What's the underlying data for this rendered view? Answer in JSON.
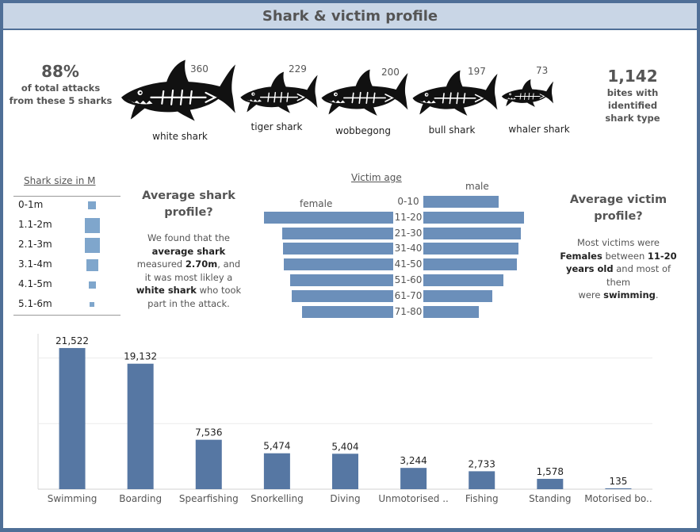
{
  "header": {
    "title": "Shark & victim profile"
  },
  "kpis": {
    "left_value": "88%",
    "left_line1": "of total attacks",
    "left_line2": "from these 5 sharks",
    "right_value": "1,142",
    "right_line1": "bites with identified",
    "right_line2": "shark type"
  },
  "sharks": [
    {
      "name": "white shark",
      "count": "360"
    },
    {
      "name": "tiger shark",
      "count": "229"
    },
    {
      "name": "wobbegong",
      "count": "200"
    },
    {
      "name": "bull shark",
      "count": "197"
    },
    {
      "name": "whaler shark",
      "count": "73"
    }
  ],
  "shark_size": {
    "title": "Shark size in M",
    "items": [
      {
        "label": "0-1m",
        "level": 0.55
      },
      {
        "label": "1.1-2m",
        "level": 1.0
      },
      {
        "label": "2.1-3m",
        "level": 1.0
      },
      {
        "label": "3.1-4m",
        "level": 0.8
      },
      {
        "label": "4.1-5m",
        "level": 0.45
      },
      {
        "label": "5.1-6m",
        "level": 0.3
      }
    ]
  },
  "shark_profile": {
    "title_line1": "Average shark",
    "title_line2": "profile?",
    "line1": "We found that the",
    "line2_bold": "average shark",
    "line3_pre": "measured ",
    "line3_bold": "2.70m",
    "line3_post": ", and",
    "line4": "it was most likley a",
    "line5_bold": "white shark",
    "line5_post": " who took",
    "line6": "part in the attack."
  },
  "victim_age": {
    "title": "Victim age",
    "female_label": "female",
    "male_label": "male",
    "groups": [
      "0-10",
      "11-20",
      "21-30",
      "31-40",
      "41-50",
      "51-60",
      "61-70",
      "71-80"
    ],
    "female": [
      0,
      163,
      140,
      139,
      138,
      130,
      128,
      115
    ],
    "male": [
      95,
      127,
      123,
      120,
      118,
      101,
      87,
      70
    ]
  },
  "victim_profile": {
    "title_line1": "Average victim",
    "title_line2": "profile?",
    "line1": "Most victims were",
    "line2_bold1": "Females",
    "line2_mid": " between ",
    "line2_bold2": "11-20",
    "line3_bold": "years old",
    "line3_post": " and most of them",
    "line4_pre": "were ",
    "line4_bold": "swimming",
    "line4_post": "."
  },
  "chart_data": {
    "type": "bar",
    "categories": [
      "Swimming",
      "Boarding",
      "Spearfishing",
      "Snorkelling",
      "Diving",
      "Unmotorised ..",
      "Fishing",
      "Standing",
      "Motorised bo.."
    ],
    "values": [
      21522,
      19132,
      7536,
      5474,
      5404,
      3244,
      2733,
      1578,
      135
    ],
    "value_labels": [
      "21,522",
      "19,132",
      "7,536",
      "5,474",
      "5,404",
      "3,244",
      "2,733",
      "1,578",
      "135"
    ],
    "ylim": [
      0,
      22000
    ],
    "grid": true,
    "bar_color": "#5677a3"
  }
}
